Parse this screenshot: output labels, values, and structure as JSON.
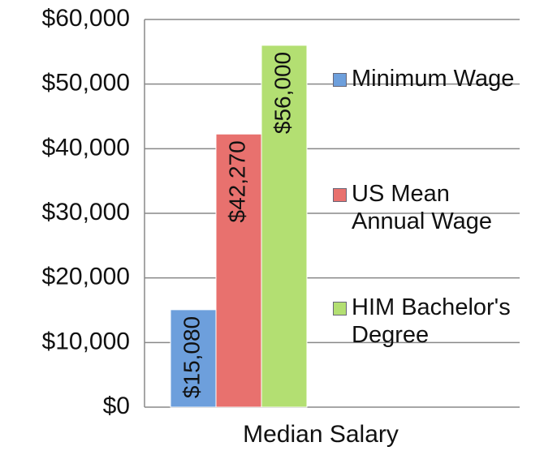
{
  "chart_data": {
    "type": "bar",
    "categories": [
      "Median Salary"
    ],
    "series": [
      {
        "name": "Minimum Wage",
        "color": "#6d9fdc",
        "values": [
          15080
        ],
        "value_labels": [
          "$15,080"
        ]
      },
      {
        "name": "US Mean Annual Wage",
        "color": "#e8716e",
        "values": [
          42270
        ],
        "value_labels": [
          "$42,270"
        ]
      },
      {
        "name": "HIM Bachelor's Degree",
        "color": "#b3df72",
        "values": [
          56000
        ],
        "value_labels": [
          "$56,000"
        ]
      }
    ],
    "ylim": [
      0,
      60000
    ],
    "yticks": [
      {
        "value": 0,
        "label": "$0"
      },
      {
        "value": 10000,
        "label": "$10,000"
      },
      {
        "value": 20000,
        "label": "$20,000"
      },
      {
        "value": 30000,
        "label": "$30,000"
      },
      {
        "value": 40000,
        "label": "$40,000"
      },
      {
        "value": 50000,
        "label": "$50,000"
      },
      {
        "value": 60000,
        "label": "$60,000"
      }
    ],
    "grid": true,
    "legend": "right"
  }
}
